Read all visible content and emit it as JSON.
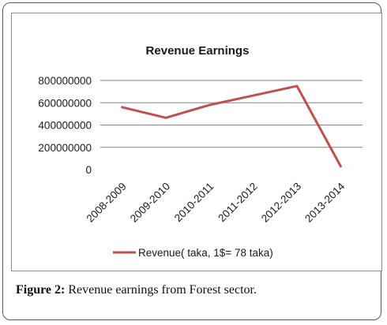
{
  "caption": {
    "label": "Figure 2:",
    "text": " Revenue earnings from Forest sector."
  },
  "chart_data": {
    "type": "line",
    "title": "Revenue Earnings",
    "xlabel": "",
    "ylabel": "",
    "categories": [
      "2008-2009",
      "2009-2010",
      "2010-2011",
      "2011-2012",
      "2012-2013",
      "2013-2014"
    ],
    "series": [
      {
        "name": "Revenue( taka, 1$= 78 taka)",
        "values": [
          560000000,
          465000000,
          580000000,
          665000000,
          750000000,
          30000000
        ],
        "color": "#c0504d"
      }
    ],
    "yticks": [
      0,
      200000000,
      400000000,
      600000000,
      800000000
    ],
    "ytick_labels": [
      "0",
      "200000000",
      "400000000",
      "600000000",
      "800000000"
    ],
    "ylim": [
      0,
      800000000
    ],
    "grid": true,
    "legend_position": "bottom",
    "gridline_color": "#868686"
  }
}
